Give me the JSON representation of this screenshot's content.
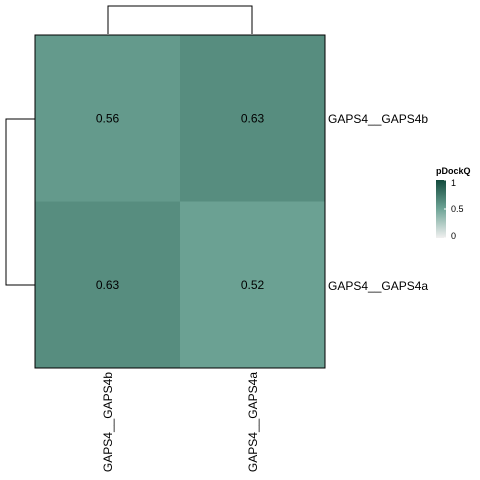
{
  "chart_data": {
    "type": "heatmap",
    "rows": [
      "GAPS4__GAPS4b",
      "GAPS4__GAPS4a"
    ],
    "columns": [
      "GAPS4__GAPS4b",
      "GAPS4__GAPS4a"
    ],
    "values": [
      [
        0.56,
        0.63
      ],
      [
        0.63,
        0.52
      ]
    ],
    "value_labels": [
      [
        "0.56",
        "0.63"
      ],
      [
        "0.63",
        "0.52"
      ]
    ],
    "legend": {
      "title": "pDockQ",
      "ticks": [
        "1",
        "0.5",
        "0"
      ],
      "tick_values": [
        1,
        0.5,
        0
      ],
      "range": [
        0,
        1
      ],
      "colors": [
        "#f0f0f0",
        "#6fa597",
        "#124a3c"
      ]
    },
    "row_dendrogram": true,
    "column_dendrogram": true
  }
}
